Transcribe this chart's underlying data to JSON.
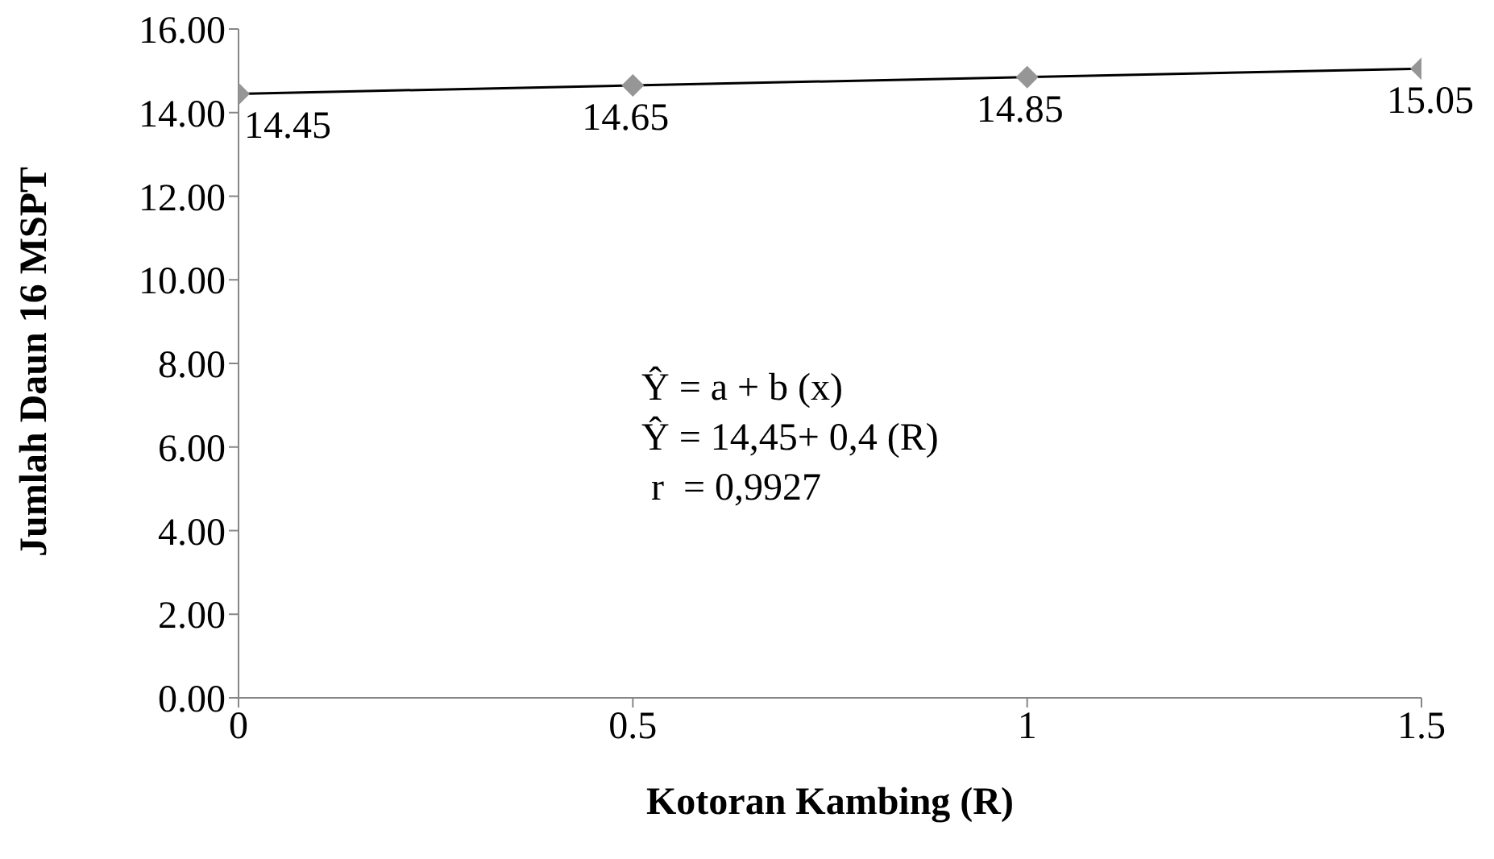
{
  "chart_data": {
    "type": "scatter",
    "xlabel": "Kotoran Kambing (R)",
    "ylabel": "Jumlah Daun 16 MSPT",
    "x": [
      0,
      0.5,
      1,
      1.5
    ],
    "series": [
      {
        "type": "line",
        "color": "#000000",
        "x": [
          0,
          1.5
        ],
        "values": [
          14.45,
          15.05
        ],
        "marker": "none"
      },
      {
        "color": "#969696",
        "marker": "diamond",
        "values": [
          14.45,
          14.65,
          14.85,
          15.05
        ],
        "value_labels": [
          "14.45",
          "14.65",
          "14.85",
          "15.05"
        ]
      }
    ],
    "xlim": [
      0,
      1.5
    ],
    "xticks": [
      0,
      0.5,
      1,
      1.5
    ],
    "ylim": [
      0,
      16
    ],
    "yticks": [
      {
        "value": 0,
        "label": "0.00"
      },
      {
        "value": 2,
        "label": "2.00"
      },
      {
        "value": 4,
        "label": "4.00"
      },
      {
        "value": 6,
        "label": "6.00"
      },
      {
        "value": 8,
        "label": "8.00"
      },
      {
        "value": 10,
        "label": "10.00"
      },
      {
        "value": 12,
        "label": "12.00"
      },
      {
        "value": 14,
        "label": "14.00"
      },
      {
        "value": 16,
        "label": "16.00"
      }
    ],
    "grid": false,
    "legend": false,
    "annotations": [
      "Ŷ = a + b (x)",
      "Ŷ = 14,45+ 0,4 (R)",
      " r  = 0,9927"
    ]
  }
}
